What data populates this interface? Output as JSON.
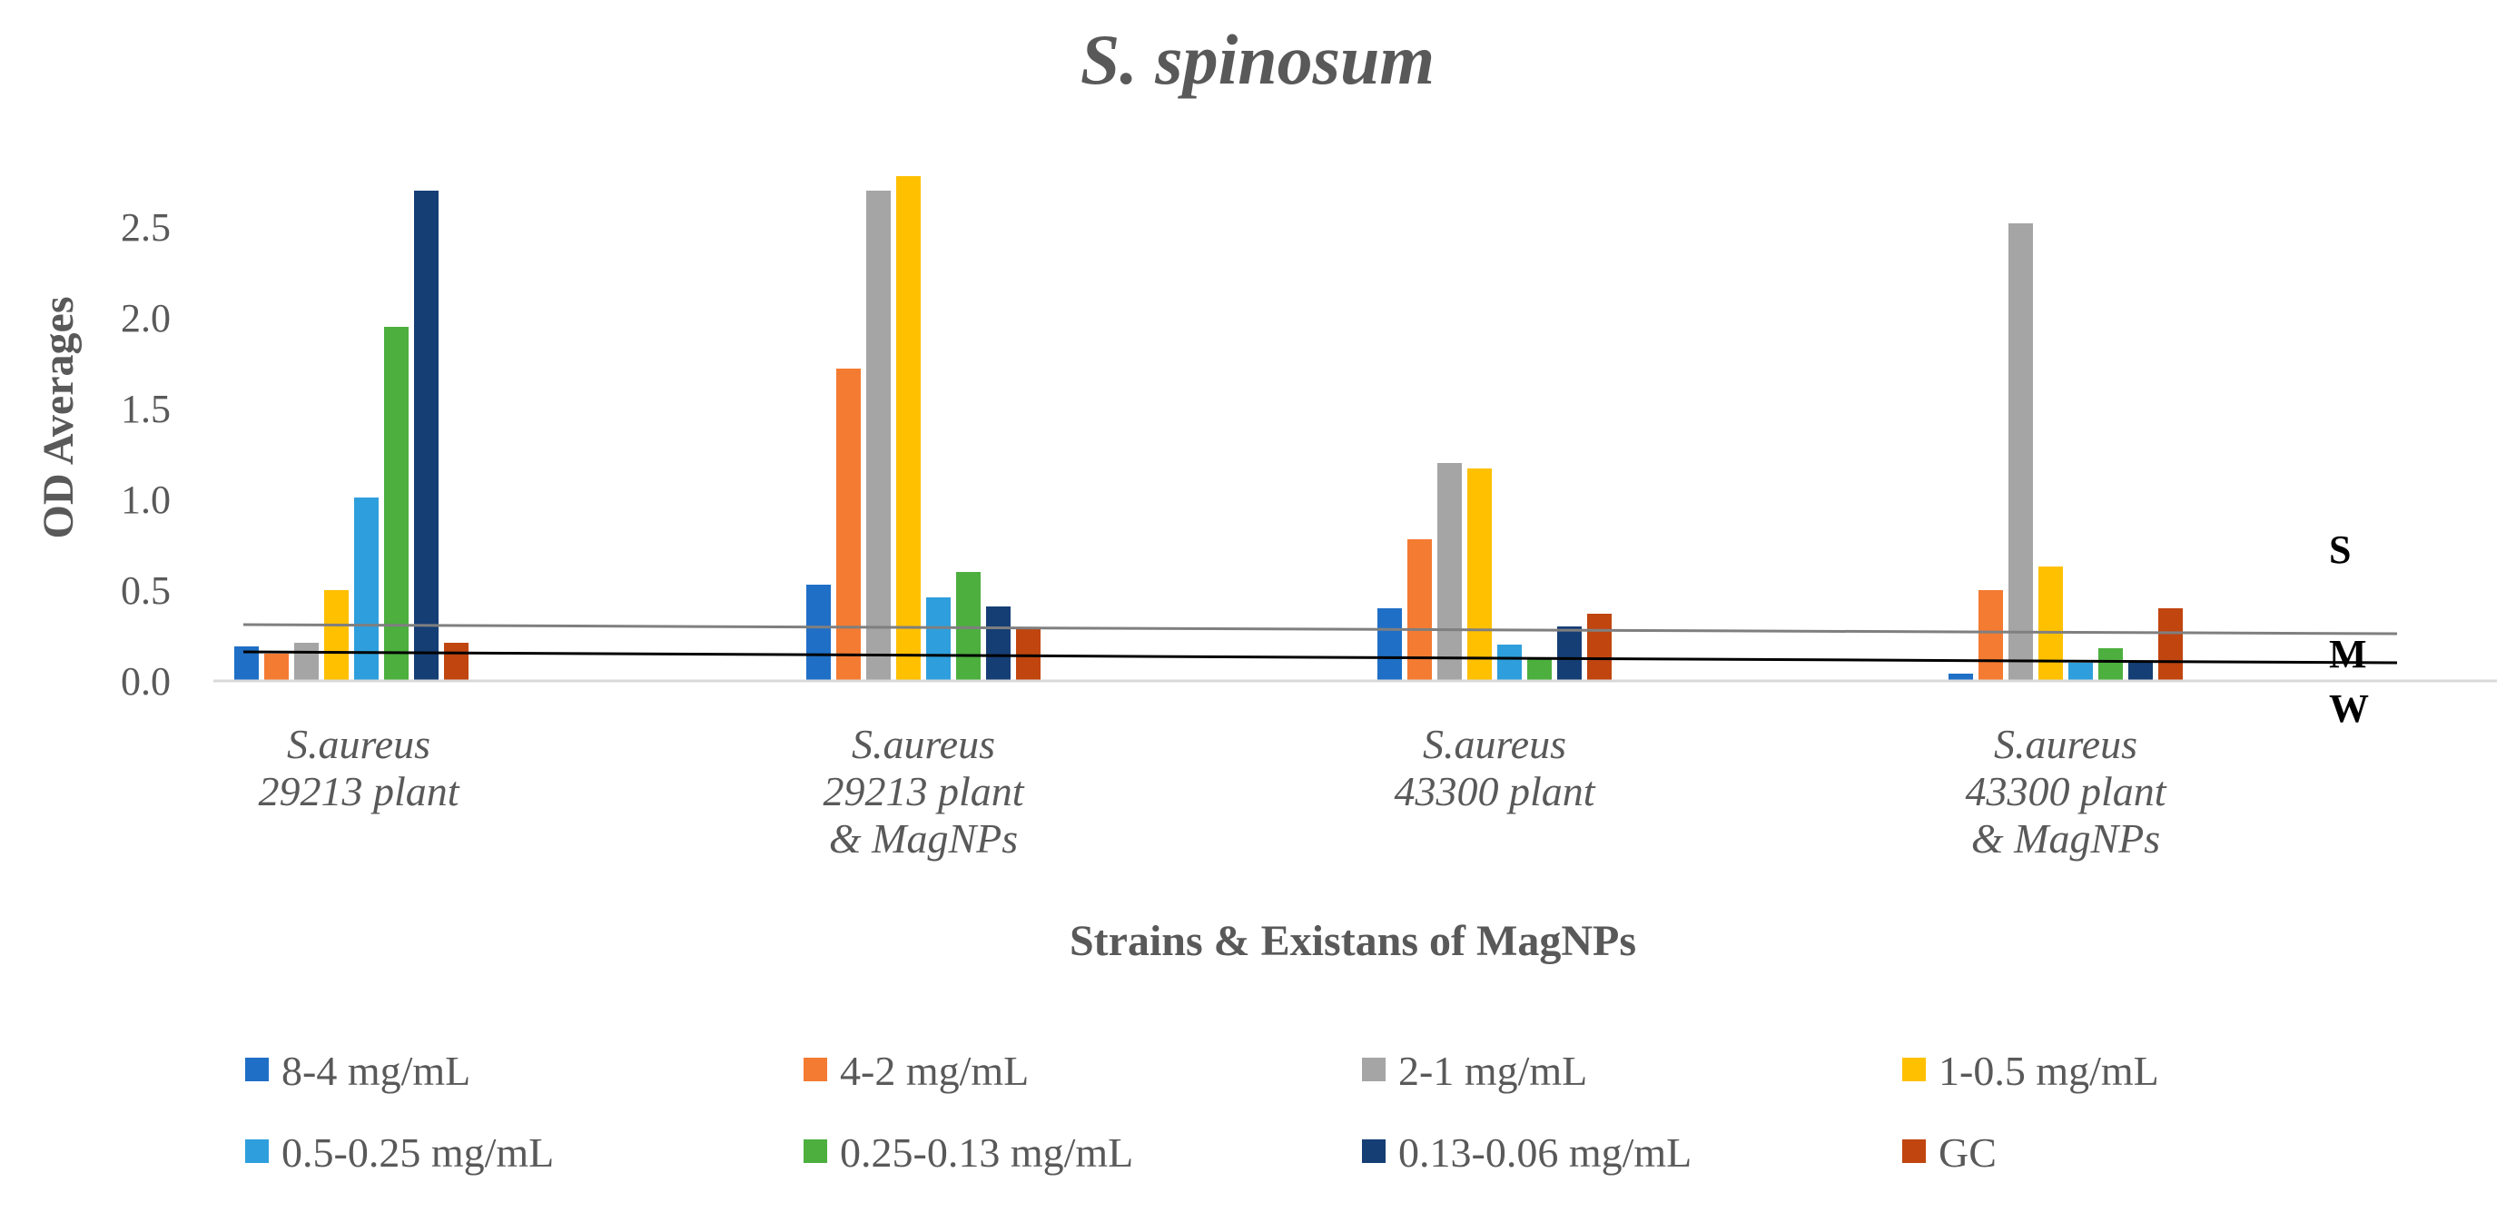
{
  "chart_data": {
    "type": "bar",
    "title": "S. spinosum",
    "xlabel": "Strains & Existans of MagNPs",
    "ylabel": "OD Averages",
    "ylim": [
      0,
      2.75
    ],
    "yticks": [
      "0.0",
      "0.5",
      "1.0",
      "1.5",
      "2.0",
      "2.5"
    ],
    "categories": [
      [
        "S.aureus",
        "29213 plant"
      ],
      [
        "S.aureus",
        "29213 plant",
        "& MagNPs"
      ],
      [
        "S.aureus",
        "43300 plant"
      ],
      [
        "S.aureus",
        "43300 plant",
        "& MagNPs"
      ]
    ],
    "series": [
      {
        "name": "8-4 mg/mL",
        "color": "#1f6fc6",
        "values": [
          0.19,
          0.53,
          0.4,
          0.04
        ]
      },
      {
        "name": "4-2 mg/mL",
        "color": "#f47b32",
        "values": [
          0.15,
          1.72,
          0.78,
          0.5
        ]
      },
      {
        "name": "2-1 mg/mL",
        "color": "#a5a5a5",
        "values": [
          0.21,
          2.7,
          1.2,
          2.52
        ]
      },
      {
        "name": "1-0.5 mg/mL",
        "color": "#ffc000",
        "values": [
          0.5,
          2.78,
          1.17,
          0.63
        ]
      },
      {
        "name": "0.5-0.25 mg/mL",
        "color": "#2e9fdc",
        "values": [
          1.01,
          0.46,
          0.2,
          0.1
        ]
      },
      {
        "name": "0.25-0.13 mg/mL",
        "color": "#4caf3e",
        "values": [
          1.95,
          0.6,
          0.12,
          0.18
        ]
      },
      {
        "name": "0.13-0.06 mg/mL",
        "color": "#153e75",
        "values": [
          2.7,
          0.41,
          0.3,
          0.11
        ]
      },
      {
        "name": "GC",
        "color": "#c0450f",
        "values": [
          0.21,
          0.29,
          0.37,
          0.4
        ]
      }
    ],
    "thresholds": [
      {
        "label": "S",
        "values": [
          0.31,
          0.26
        ],
        "color": "#7f7f7f"
      },
      {
        "label": "M",
        "values": [
          0.16,
          0.1
        ],
        "color": "#000000"
      },
      {
        "label": "W",
        "values": [
          0.0,
          0.0
        ],
        "color": "#bfbfbf"
      }
    ]
  }
}
